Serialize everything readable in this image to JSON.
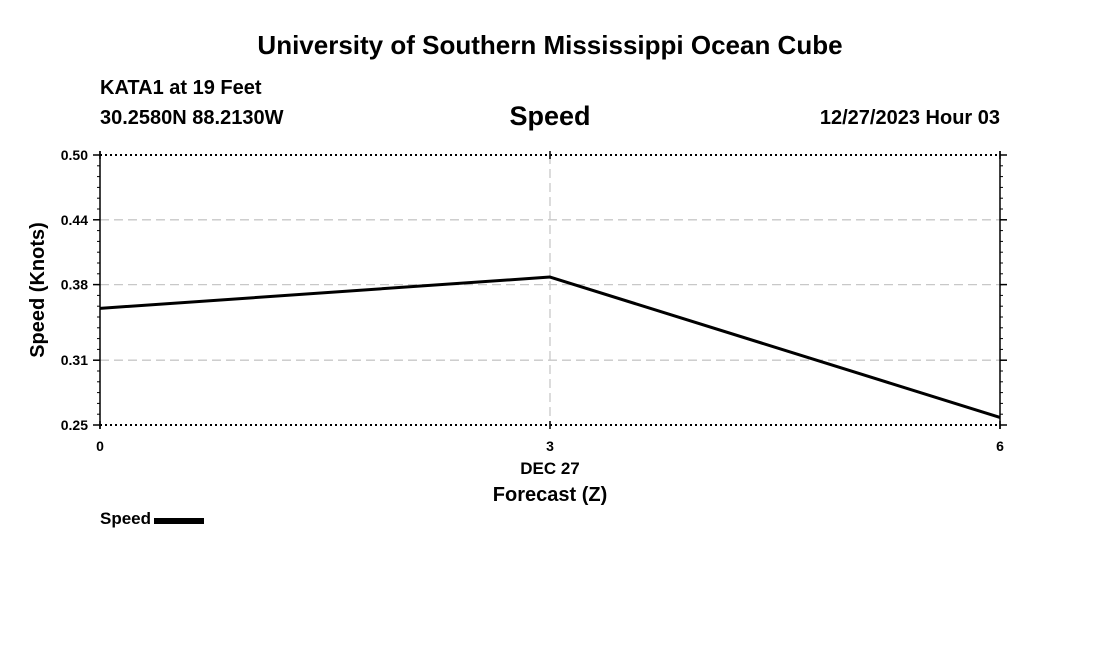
{
  "header": {
    "title": "University of Southern Mississippi Ocean Cube",
    "station": "KATA1 at 19 Feet",
    "coordinates": "30.2580N  88.2130W",
    "variable": "Speed",
    "datetime": "12/27/2023 Hour 03"
  },
  "footer": {
    "title": "University of Southern Mississippi Ocean Cube"
  },
  "chart_data": {
    "type": "line",
    "title": "Speed",
    "xlabel": "Forecast (Z)",
    "xlabel_date": "DEC 27",
    "ylabel": "Speed (Knots)",
    "x_ticks": [
      "0",
      "3",
      "6"
    ],
    "x_tick_values": [
      0,
      3,
      6
    ],
    "y_ticks": [
      "0.50",
      "0.44",
      "0.38",
      "0.31",
      "0.25"
    ],
    "y_tick_values": [
      0.5,
      0.44,
      0.38,
      0.31,
      0.25
    ],
    "xlim": [
      0,
      6
    ],
    "ylim": [
      0.25,
      0.5
    ],
    "grid": true,
    "legend_position": "bottom-left",
    "series": [
      {
        "name": "Speed",
        "color": "#000000",
        "x": [
          0,
          3,
          6
        ],
        "values": [
          0.358,
          0.387,
          0.257
        ]
      }
    ]
  }
}
